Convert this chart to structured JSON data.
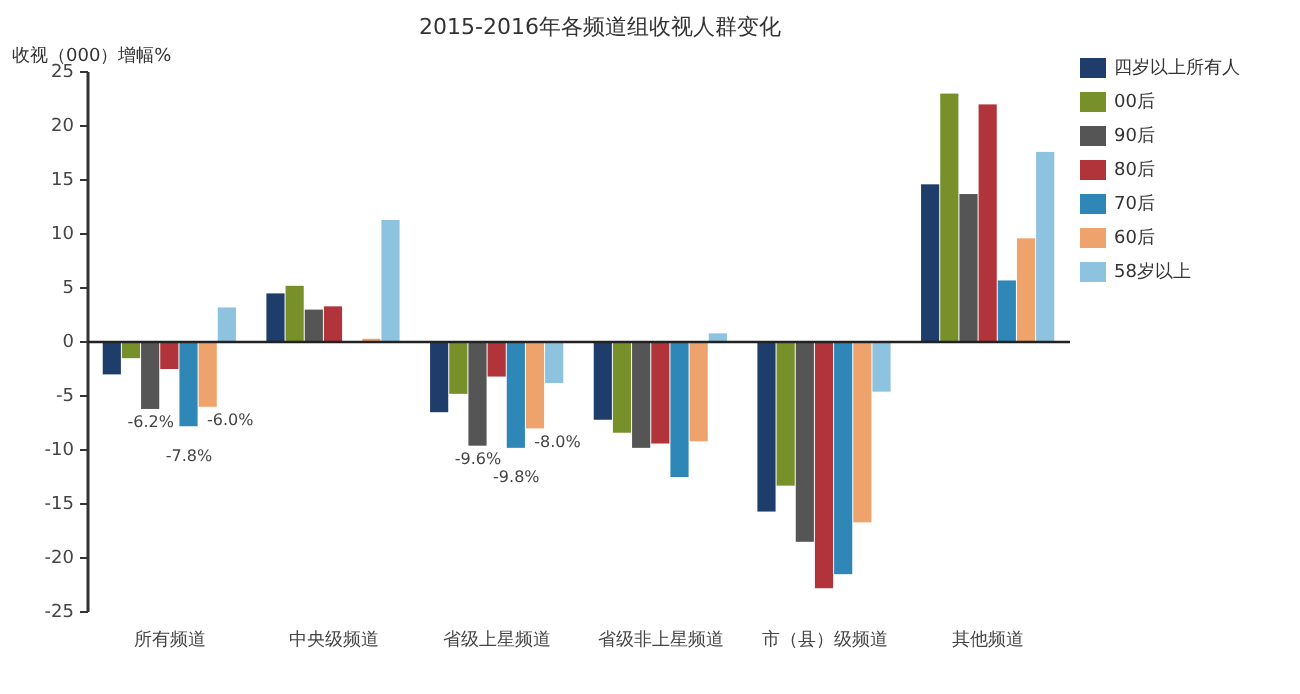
{
  "chart_data": {
    "type": "bar",
    "title": "2015-2016年各频道组收视人群变化",
    "ylabel": "收视（000）增幅%",
    "categories": [
      "所有频道",
      "中央级频道",
      "省级上星频道",
      "省级非上星频道",
      "市（县）级频道",
      "其他频道"
    ],
    "ylim": [
      -25,
      25
    ],
    "yticks": [
      -25,
      -20,
      -15,
      -10,
      -5,
      0,
      5,
      10,
      15,
      20,
      25
    ],
    "legend": "right",
    "series": [
      {
        "name": "四岁以上所有人",
        "color": "#1f3d6b",
        "values": [
          -3.0,
          4.5,
          -6.5,
          -7.2,
          -15.7,
          14.6
        ]
      },
      {
        "name": "00后",
        "color": "#77902a",
        "values": [
          -1.5,
          5.2,
          -4.8,
          -8.4,
          -13.3,
          23.0
        ]
      },
      {
        "name": "90后",
        "color": "#555555",
        "values": [
          -6.2,
          3.0,
          -9.6,
          -9.8,
          -18.5,
          13.7
        ],
        "value_labels": [
          "-6.2%",
          null,
          "-9.6%",
          null,
          null,
          null
        ]
      },
      {
        "name": "80后",
        "color": "#b0343a",
        "values": [
          -2.5,
          3.3,
          -3.2,
          -9.4,
          -22.8,
          22.0
        ]
      },
      {
        "name": "70后",
        "color": "#2f87b8",
        "values": [
          -7.8,
          null,
          -9.8,
          -12.5,
          -21.5,
          5.7
        ],
        "value_labels": [
          "-7.8%",
          null,
          "-9.8%",
          null,
          null,
          null
        ]
      },
      {
        "name": "60后",
        "color": "#eda36b",
        "values": [
          -6.0,
          0.3,
          -8.0,
          -9.2,
          -16.7,
          9.6
        ],
        "value_labels": [
          "-6.0%",
          null,
          "-8.0%",
          null,
          null,
          null
        ]
      },
      {
        "name": "58岁以上",
        "color": "#8ec3e0",
        "values": [
          3.2,
          11.3,
          -3.8,
          0.8,
          -4.6,
          17.6
        ]
      }
    ]
  }
}
